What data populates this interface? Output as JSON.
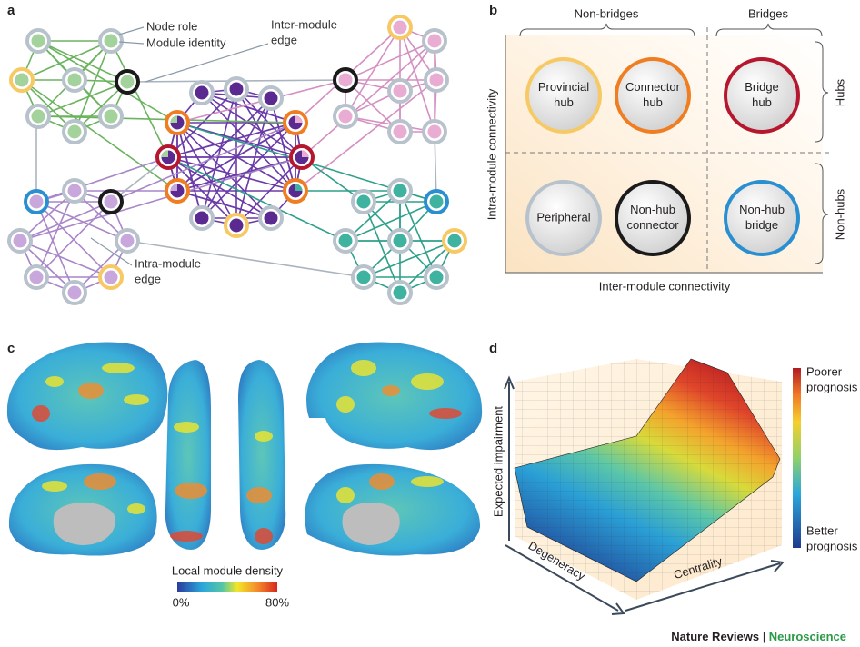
{
  "panels": {
    "a": {
      "label": "a",
      "callouts": {
        "node_role": "Node role",
        "module_identity": "Module identity",
        "inter_module_edge": [
          "Inter-module",
          "edge"
        ],
        "intra_module_edge": [
          "Intra-module",
          "edge"
        ]
      }
    },
    "b": {
      "label": "b",
      "columns": [
        "Non-bridges",
        "Bridges"
      ],
      "rows": [
        "Hubs",
        "Non-hubs"
      ],
      "y_axis": "Intra-module connectivity",
      "x_axis": "Inter-module connectivity",
      "roles": [
        [
          "Provincial",
          "hub"
        ],
        [
          "Connector",
          "hub"
        ],
        [
          "Bridge",
          "hub"
        ],
        [
          "Peripheral"
        ],
        [
          "Non-hub",
          "connector"
        ],
        [
          "Non-hub",
          "bridge"
        ]
      ]
    },
    "c": {
      "label": "c",
      "colorbar_title": "Local module density",
      "colorbar_min": "0%",
      "colorbar_max": "80%"
    },
    "d": {
      "label": "d",
      "z_axis": "Expected impairment",
      "x_axis": "Degeneracy",
      "y_axis": "Centrality",
      "top_label": [
        "Poorer",
        "prognosis"
      ],
      "bottom_label": [
        "Better",
        "prognosis"
      ]
    }
  },
  "footer": {
    "journal": "Nature Reviews",
    "separator": "|",
    "section": "Neuroscience"
  }
}
